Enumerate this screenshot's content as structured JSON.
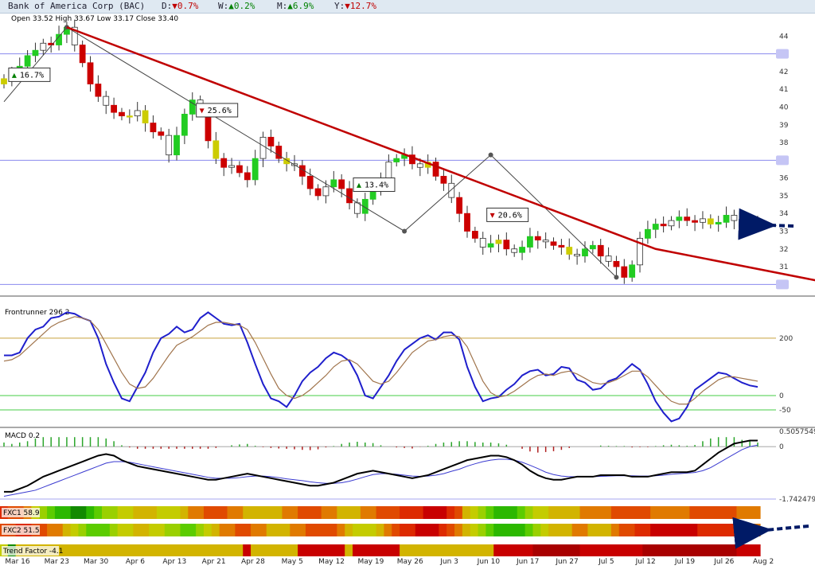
{
  "header": {
    "title": "Bank of America Corp (BAC)",
    "d_label": "D:",
    "d_arrow": "▼",
    "d_value": "0.7%",
    "w_label": "W:",
    "w_arrow": "▲",
    "w_value": "0.2%",
    "m_label": "M:",
    "m_arrow": "▲",
    "m_value": "6.9%",
    "y_label": "Y:",
    "y_arrow": "▼",
    "y_value": "12.7%"
  },
  "price_panel": {
    "ohlc_text": "Open 33.52  High 33.67  Low 33.17  Close 33.40",
    "highlight_levels": [
      "43",
      "37",
      "30"
    ]
  },
  "colors": {
    "bull": "#22cc22",
    "bear": "#cc0000",
    "neutral": "#cccc00",
    "trend": "#c00000",
    "fast": "#1f1fcc",
    "slow": "#a0744c"
  },
  "chart_data": [
    {
      "type": "candlestick",
      "x_ticks": [
        "Mar 16",
        "Mar 23",
        "Mar 30",
        "Apr 6",
        "Apr 13",
        "Apr 21",
        "Apr 28",
        "May 5",
        "May 12",
        "May 19",
        "May 26",
        "Jun 3",
        "Jun 10",
        "Jun 17",
        "Jun 27",
        "Jul 5",
        "Jul 12",
        "Jul 19",
        "Jul 26",
        "Aug 2"
      ],
      "y_ticks": [
        30,
        31,
        32,
        33,
        34,
        35,
        36,
        37,
        38,
        39,
        40,
        41,
        42,
        43,
        44
      ],
      "ylim": [
        29.7,
        44.6
      ],
      "closes": [
        41.6,
        41.9,
        42.3,
        42.9,
        43.2,
        43.6,
        43.5,
        44.1,
        44.5,
        43.5,
        42.5,
        41.3,
        40.6,
        40.1,
        39.7,
        39.5,
        39.5,
        39.8,
        39.1,
        38.6,
        38.4,
        37.3,
        38.4,
        39.6,
        40.4,
        39.8,
        38.1,
        37.1,
        36.6,
        36.7,
        36.3,
        35.9,
        37.1,
        38.3,
        37.8,
        37.1,
        36.8,
        36.7,
        36.1,
        35.4,
        35.0,
        35.5,
        35.9,
        35.4,
        34.6,
        34.0,
        34.8,
        35.5,
        36.0,
        36.9,
        37.1,
        37.3,
        36.8,
        36.6,
        36.9,
        36.1,
        35.7,
        34.9,
        34.0,
        33.0,
        32.6,
        32.1,
        32.3,
        32.5,
        32.0,
        31.8,
        32.1,
        32.7,
        32.5,
        32.4,
        32.2,
        32.1,
        31.7,
        31.6,
        32.0,
        32.2,
        31.6,
        31.3,
        31.0,
        30.4,
        31.1,
        32.6,
        33.1,
        33.4,
        33.3,
        33.6,
        33.8,
        33.6,
        33.5,
        33.7,
        33.4,
        33.5,
        33.9,
        33.6,
        33.4,
        33.5,
        33.4
      ],
      "callouts": [
        {
          "arrow": "▲",
          "text": "16.7%",
          "kind": "up"
        },
        {
          "arrow": "▼",
          "text": "25.6%",
          "kind": "down"
        },
        {
          "arrow": "▲",
          "text": "13.4%",
          "kind": "up"
        },
        {
          "arrow": "▼",
          "text": "20.6%",
          "kind": "down"
        }
      ],
      "swing_points": [
        [
          0,
          40.3
        ],
        [
          8,
          44.5
        ],
        [
          51,
          33.0
        ],
        [
          62,
          37.3
        ],
        [
          78,
          30.4
        ]
      ],
      "trendline": [
        [
          8,
          44.5
        ],
        [
          83,
          32.0
        ],
        [
          106,
          30.0
        ]
      ]
    },
    {
      "type": "line",
      "name": "Frontrunner 296.2",
      "y_ticks": [
        "200",
        "0",
        "-50"
      ],
      "ylim": [
        -100,
        330
      ],
      "series": [
        {
          "name": "fast",
          "values": [
            140,
            140,
            150,
            200,
            230,
            240,
            270,
            275,
            290,
            285,
            270,
            260,
            200,
            110,
            45,
            -10,
            -20,
            30,
            80,
            150,
            200,
            215,
            240,
            220,
            230,
            270,
            290,
            270,
            250,
            245,
            250,
            185,
            110,
            40,
            -10,
            -20,
            -40,
            0,
            50,
            80,
            100,
            130,
            150,
            140,
            120,
            70,
            0,
            -10,
            30,
            70,
            120,
            160,
            180,
            200,
            210,
            195,
            220,
            220,
            195,
            100,
            30,
            -20,
            -10,
            -5,
            20,
            40,
            70,
            85,
            90,
            70,
            75,
            100,
            95,
            55,
            45,
            20,
            25,
            50,
            60,
            85,
            110,
            90,
            40,
            -20,
            -60,
            -90,
            -80,
            -40,
            20,
            40,
            60,
            80,
            75,
            60,
            45,
            35,
            30
          ]
        },
        {
          "name": "slow",
          "values": [
            120,
            125,
            140,
            165,
            190,
            215,
            240,
            255,
            265,
            275,
            270,
            260,
            230,
            180,
            130,
            80,
            40,
            25,
            30,
            60,
            100,
            140,
            175,
            190,
            205,
            225,
            245,
            255,
            255,
            250,
            245,
            230,
            185,
            130,
            75,
            25,
            0,
            -10,
            0,
            20,
            45,
            70,
            100,
            120,
            125,
            110,
            80,
            50,
            40,
            50,
            80,
            115,
            150,
            170,
            190,
            195,
            205,
            210,
            205,
            170,
            110,
            50,
            10,
            -5,
            0,
            15,
            35,
            55,
            70,
            75,
            70,
            80,
            85,
            75,
            60,
            45,
            40,
            45,
            55,
            70,
            85,
            85,
            65,
            35,
            5,
            -20,
            -30,
            -30,
            -10,
            15,
            35,
            55,
            65,
            65,
            60,
            55,
            50
          ]
        }
      ]
    },
    {
      "type": "bar",
      "name": "MACD 0.2",
      "y_ticks": [
        "0.5057549",
        "0",
        "-1.742479"
      ],
      "ylim": [
        -1.742479,
        0.5057549
      ],
      "macd_line": [
        -1.5,
        -1.5,
        -1.4,
        -1.3,
        -1.15,
        -1.0,
        -0.9,
        -0.8,
        -0.7,
        -0.6,
        -0.5,
        -0.4,
        -0.3,
        -0.25,
        -0.3,
        -0.45,
        -0.55,
        -0.65,
        -0.7,
        -0.75,
        -0.8,
        -0.85,
        -0.9,
        -0.95,
        -1.0,
        -1.05,
        -1.1,
        -1.1,
        -1.05,
        -1.0,
        -0.95,
        -0.9,
        -0.95,
        -1.0,
        -1.05,
        -1.1,
        -1.15,
        -1.2,
        -1.25,
        -1.3,
        -1.3,
        -1.25,
        -1.2,
        -1.1,
        -1.0,
        -0.9,
        -0.85,
        -0.8,
        -0.85,
        -0.9,
        -0.95,
        -1.0,
        -1.05,
        -1.0,
        -0.95,
        -0.85,
        -0.75,
        -0.65,
        -0.55,
        -0.45,
        -0.4,
        -0.35,
        -0.3,
        -0.3,
        -0.35,
        -0.45,
        -0.6,
        -0.8,
        -0.95,
        -1.05,
        -1.1,
        -1.1,
        -1.05,
        -1.0,
        -1.0,
        -1.0,
        -0.95,
        -0.95,
        -0.95,
        -0.95,
        -1.0,
        -1.0,
        -1.0,
        -0.95,
        -0.9,
        -0.85,
        -0.85,
        -0.85,
        -0.8,
        -0.6,
        -0.4,
        -0.2,
        -0.05,
        0.1,
        0.15,
        0.2,
        0.2
      ],
      "signal_line": [
        -1.65,
        -1.6,
        -1.55,
        -1.5,
        -1.45,
        -1.35,
        -1.25,
        -1.15,
        -1.05,
        -0.95,
        -0.85,
        -0.75,
        -0.65,
        -0.55,
        -0.5,
        -0.5,
        -0.52,
        -0.57,
        -0.62,
        -0.67,
        -0.72,
        -0.77,
        -0.82,
        -0.87,
        -0.92,
        -0.97,
        -1.02,
        -1.05,
        -1.05,
        -1.05,
        -1.03,
        -1.0,
        -0.98,
        -0.98,
        -1.0,
        -1.03,
        -1.07,
        -1.1,
        -1.13,
        -1.17,
        -1.2,
        -1.22,
        -1.22,
        -1.2,
        -1.15,
        -1.08,
        -1.0,
        -0.93,
        -0.9,
        -0.9,
        -0.92,
        -0.95,
        -0.98,
        -0.99,
        -0.98,
        -0.95,
        -0.9,
        -0.82,
        -0.75,
        -0.65,
        -0.57,
        -0.5,
        -0.45,
        -0.42,
        -0.42,
        -0.45,
        -0.52,
        -0.62,
        -0.73,
        -0.85,
        -0.93,
        -0.98,
        -1.0,
        -1.0,
        -1.0,
        -1.0,
        -0.99,
        -0.98,
        -0.97,
        -0.97,
        -0.97,
        -0.98,
        -0.98,
        -0.97,
        -0.95,
        -0.92,
        -0.9,
        -0.88,
        -0.86,
        -0.8,
        -0.7,
        -0.55,
        -0.4,
        -0.25,
        -0.1,
        0.0,
        0.05
      ]
    },
    {
      "type": "heatmap",
      "rows": [
        {
          "name": "FXC1 58.9",
          "values": [
            2,
            3,
            3,
            4,
            6,
            7,
            8,
            9,
            9,
            10,
            10,
            9,
            8,
            7,
            7,
            6,
            6,
            5,
            5,
            5,
            6,
            6,
            6,
            5,
            4,
            4,
            3,
            3,
            3,
            4,
            4,
            5,
            5,
            5,
            5,
            5,
            4,
            4,
            3,
            3,
            3,
            4,
            4,
            5,
            5,
            5,
            4,
            4,
            3,
            3,
            3,
            2,
            2,
            2,
            1,
            1,
            1,
            2,
            3,
            5,
            6,
            7,
            8,
            9,
            9,
            9,
            8,
            7,
            6,
            6,
            5,
            5,
            5,
            5,
            4,
            4,
            4,
            4,
            3,
            3,
            3,
            3,
            3,
            4,
            4,
            4,
            4,
            4,
            3,
            3,
            3,
            3,
            3,
            3,
            4,
            4,
            4
          ]
        },
        {
          "name": "FXC2 51.5",
          "values": [
            3,
            3,
            2,
            2,
            3,
            3,
            4,
            4,
            5,
            6,
            7,
            8,
            8,
            8,
            7,
            6,
            6,
            5,
            5,
            6,
            6,
            7,
            7,
            8,
            8,
            7,
            6,
            5,
            4,
            4,
            3,
            3,
            4,
            4,
            5,
            5,
            5,
            4,
            4,
            3,
            3,
            3,
            3,
            4,
            5,
            6,
            6,
            6,
            5,
            4,
            3,
            2,
            2,
            1,
            1,
            1,
            2,
            3,
            4,
            5,
            6,
            7,
            8,
            9,
            9,
            9,
            9,
            8,
            7,
            6,
            5,
            5,
            5,
            4,
            4,
            5,
            5,
            5,
            4,
            3,
            3,
            2,
            2,
            1,
            1,
            1,
            1,
            1,
            1,
            2,
            2,
            2,
            2,
            2,
            3,
            4,
            4
          ]
        },
        {
          "name": "Trend Factor -4.1",
          "values": [
            6,
            10,
            5,
            5,
            5,
            5,
            5,
            5,
            5,
            5,
            5,
            5,
            5,
            5,
            5,
            5,
            5,
            5,
            5,
            5,
            5,
            5,
            5,
            5,
            5,
            5,
            5,
            5,
            5,
            5,
            5,
            1,
            5,
            5,
            5,
            5,
            5,
            5,
            1,
            1,
            1,
            1,
            1,
            1,
            5,
            1,
            1,
            1,
            1,
            1,
            1,
            5,
            5,
            5,
            5,
            5,
            5,
            5,
            5,
            5,
            5,
            5,
            5,
            1,
            1,
            1,
            1,
            1,
            0,
            0,
            0,
            0,
            0,
            0,
            1,
            1,
            1,
            1,
            1,
            1,
            1,
            1,
            0,
            0,
            0,
            0,
            0,
            0,
            0,
            0,
            0,
            0,
            0,
            0,
            1,
            1,
            1
          ]
        }
      ]
    }
  ]
}
